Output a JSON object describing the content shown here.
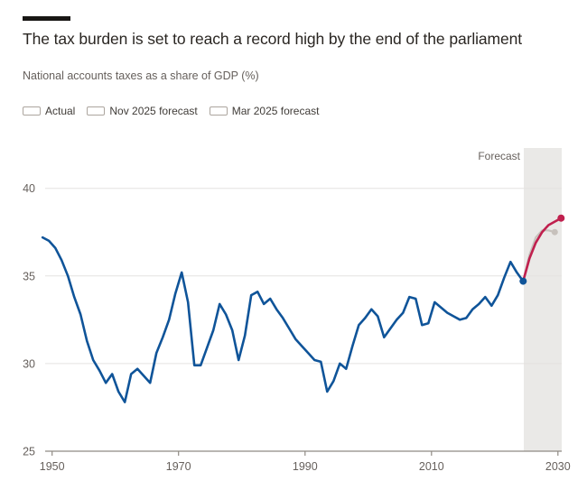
{
  "colors": {
    "background": "#ffffff",
    "band": "#eae9e7",
    "grid": "#e4e2e0",
    "axis": "#8f8a84",
    "tick_text": "#66605c",
    "title_text": "#2a2622",
    "actual_blue": "#0f5499",
    "forecast_red": "#c0204e",
    "forecast_gray": "#c7c1bc"
  },
  "chart_data": {
    "type": "line",
    "title": "The tax burden is set to reach a record high by the end of the parliament",
    "subtitle": "National accounts taxes as a share of GDP (%)",
    "xlabel": "",
    "ylabel": "National accounts taxes as a share of GDP (%)",
    "xlim": [
      1948.9,
      2030.6
    ],
    "ylim": [
      25,
      42.3
    ],
    "xticks": [
      1950,
      1970,
      1990,
      2010,
      2030
    ],
    "yticks": [
      25,
      30,
      35,
      40
    ],
    "grid": "horizontal",
    "legend_position": "top",
    "forecast_band": {
      "label": "Forecast",
      "start": 2024.6,
      "end": 2030.6
    },
    "series": [
      {
        "name": "Actual",
        "color": "#0f5499",
        "line_width": 2.6,
        "end_dot": true,
        "dot_radius": 4,
        "x_start": 1948.5,
        "x_step": 1,
        "values": [
          37.2,
          37.0,
          36.6,
          35.9,
          35.0,
          33.8,
          32.8,
          31.3,
          30.2,
          29.6,
          28.9,
          29.4,
          28.4,
          27.8,
          29.4,
          29.7,
          29.3,
          28.9,
          30.6,
          31.5,
          32.5,
          34.0,
          35.2,
          33.5,
          29.9,
          29.9,
          30.9,
          31.9,
          33.4,
          32.8,
          31.9,
          30.2,
          31.6,
          33.9,
          34.1,
          33.4,
          33.7,
          33.1,
          32.6,
          32.0,
          31.4,
          31.0,
          30.6,
          30.2,
          30.1,
          28.4,
          29.0,
          30.0,
          29.7,
          31.0,
          32.2,
          32.6,
          33.1,
          32.7,
          31.5,
          32.0,
          32.5,
          32.9,
          33.8,
          33.7,
          32.2,
          32.3,
          33.5,
          33.2,
          32.9,
          32.7,
          32.5,
          32.6,
          33.1,
          33.4,
          33.8,
          33.3,
          33.9,
          34.9,
          35.8,
          35.2,
          34.7
        ]
      },
      {
        "name": "Nov 2025 forecast",
        "color": "#c0204e",
        "line_width": 2.6,
        "end_dot": true,
        "dot_radius": 4,
        "x": [
          2024.5,
          2025.5,
          2026.5,
          2027.5,
          2028.5,
          2029.5,
          2030.5
        ],
        "values": [
          34.7,
          36.0,
          36.9,
          37.5,
          37.9,
          38.1,
          38.3
        ]
      },
      {
        "name": "Mar 2025 forecast",
        "color": "#c7c1bc",
        "line_width": 2.2,
        "end_dot": true,
        "dot_radius": 3.5,
        "x": [
          2024.5,
          2025.5,
          2026.5,
          2027.5,
          2028.5,
          2029.5
        ],
        "values": [
          34.7,
          36.2,
          37.2,
          37.6,
          37.6,
          37.5
        ]
      }
    ]
  }
}
